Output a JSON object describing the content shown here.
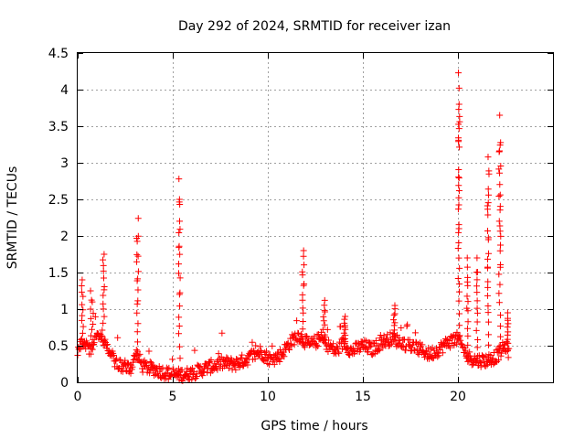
{
  "chart_data": {
    "type": "scatter",
    "title": "Day 292 of 2024, SRMTID for receiver izan",
    "xlabel": "GPS time / hours",
    "ylabel": "SRMTID / TECUs",
    "xlim": [
      0,
      25
    ],
    "ylim": [
      0,
      4.5
    ],
    "grid": true,
    "marker": "+",
    "series_color": "#ff0000",
    "x_ticks": [
      0,
      5,
      10,
      15,
      20
    ],
    "x_tick_labels": [
      "0",
      "5",
      "10",
      "15",
      "20"
    ],
    "y_ticks": [
      0,
      0.5,
      1,
      1.5,
      2,
      2.5,
      3,
      3.5,
      4,
      4.5
    ],
    "y_tick_labels": [
      "0",
      "0.5",
      "1",
      "1.5",
      "2",
      "2.5",
      "3",
      "3.5",
      "4",
      "4.5"
    ],
    "profile": [
      [
        0.0,
        0.45
      ],
      [
        0.3,
        0.55
      ],
      [
        0.6,
        0.4
      ],
      [
        1.0,
        0.7
      ],
      [
        1.4,
        0.55
      ],
      [
        1.8,
        0.35
      ],
      [
        2.2,
        0.22
      ],
      [
        2.8,
        0.2
      ],
      [
        3.1,
        0.4
      ],
      [
        3.4,
        0.22
      ],
      [
        4.0,
        0.18
      ],
      [
        4.6,
        0.13
      ],
      [
        5.2,
        0.1
      ],
      [
        6.0,
        0.12
      ],
      [
        6.8,
        0.2
      ],
      [
        7.6,
        0.26
      ],
      [
        8.3,
        0.25
      ],
      [
        9.0,
        0.33
      ],
      [
        9.6,
        0.42
      ],
      [
        10.2,
        0.3
      ],
      [
        10.7,
        0.38
      ],
      [
        11.2,
        0.55
      ],
      [
        11.6,
        0.65
      ],
      [
        12.2,
        0.5
      ],
      [
        12.8,
        0.6
      ],
      [
        13.2,
        0.5
      ],
      [
        13.6,
        0.42
      ],
      [
        14.0,
        0.55
      ],
      [
        14.4,
        0.42
      ],
      [
        15.0,
        0.5
      ],
      [
        15.5,
        0.45
      ],
      [
        16.0,
        0.55
      ],
      [
        16.5,
        0.6
      ],
      [
        17.0,
        0.55
      ],
      [
        17.5,
        0.5
      ],
      [
        18.0,
        0.45
      ],
      [
        18.5,
        0.38
      ],
      [
        19.0,
        0.45
      ],
      [
        19.5,
        0.55
      ],
      [
        20.0,
        0.6
      ],
      [
        20.5,
        0.35
      ],
      [
        21.0,
        0.3
      ],
      [
        21.5,
        0.3
      ],
      [
        22.0,
        0.35
      ],
      [
        22.5,
        0.5
      ],
      [
        22.7,
        0.4
      ]
    ],
    "scatter": 0.09,
    "spikes": [
      {
        "x": 0.25,
        "peak": 1.4,
        "width": 0.1
      },
      {
        "x": 0.75,
        "peak": 1.25,
        "width": 0.15
      },
      {
        "x": 1.35,
        "peak": 1.75,
        "width": 0.12
      },
      {
        "x": 3.15,
        "peak": 2.24,
        "width": 0.1
      },
      {
        "x": 5.35,
        "peak": 2.78,
        "width": 0.08
      },
      {
        "x": 11.85,
        "peak": 1.8,
        "width": 0.12
      },
      {
        "x": 12.95,
        "peak": 1.12,
        "width": 0.12
      },
      {
        "x": 14.05,
        "peak": 0.9,
        "width": 0.1
      },
      {
        "x": 16.65,
        "peak": 1.05,
        "width": 0.1
      },
      {
        "x": 20.05,
        "peak": 4.23,
        "width": 0.08
      },
      {
        "x": 20.5,
        "peak": 1.7,
        "width": 0.08
      },
      {
        "x": 21.0,
        "peak": 1.7,
        "width": 0.08
      },
      {
        "x": 21.6,
        "peak": 3.08,
        "width": 0.1
      },
      {
        "x": 22.2,
        "peak": 3.65,
        "width": 0.1
      },
      {
        "x": 22.6,
        "peak": 0.95,
        "width": 0.08
      }
    ]
  }
}
